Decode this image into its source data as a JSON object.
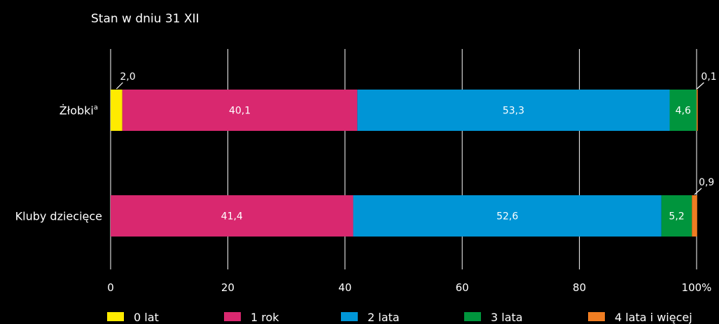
{
  "chart_data": {
    "type": "bar",
    "orientation": "horizontal",
    "stacked": true,
    "subtitle": "Stan w dniu 31 XII",
    "categories": [
      "Żłobki",
      "Kluby dziecięce"
    ],
    "category_superscripts": [
      "a",
      ""
    ],
    "series": [
      {
        "name": "0 lat",
        "color": "#ffeb00",
        "values": [
          2.0,
          0
        ],
        "labels": [
          "2,0",
          ""
        ]
      },
      {
        "name": "1 rok",
        "color": "#d9286f",
        "values": [
          40.1,
          41.4
        ],
        "labels": [
          "40,1",
          "41,4"
        ]
      },
      {
        "name": "2 lata",
        "color": "#0095d6",
        "values": [
          53.3,
          52.6
        ],
        "labels": [
          "53,3",
          "52,6"
        ]
      },
      {
        "name": "3 lata",
        "color": "#00953d",
        "values": [
          4.6,
          5.2
        ],
        "labels": [
          "4,6",
          "5,2"
        ]
      },
      {
        "name": "4 lata i więcej",
        "color": "#ef7d22",
        "values": [
          0.1,
          0.9
        ],
        "labels": [
          "0,1",
          "0,9"
        ]
      }
    ],
    "xlim": [
      0,
      100
    ],
    "xticks": [
      0,
      20,
      40,
      60,
      80,
      100
    ],
    "xtick_labels": [
      "0",
      "20",
      "40",
      "60",
      "80",
      "100%"
    ],
    "grid": true,
    "legend_position": "bottom"
  }
}
